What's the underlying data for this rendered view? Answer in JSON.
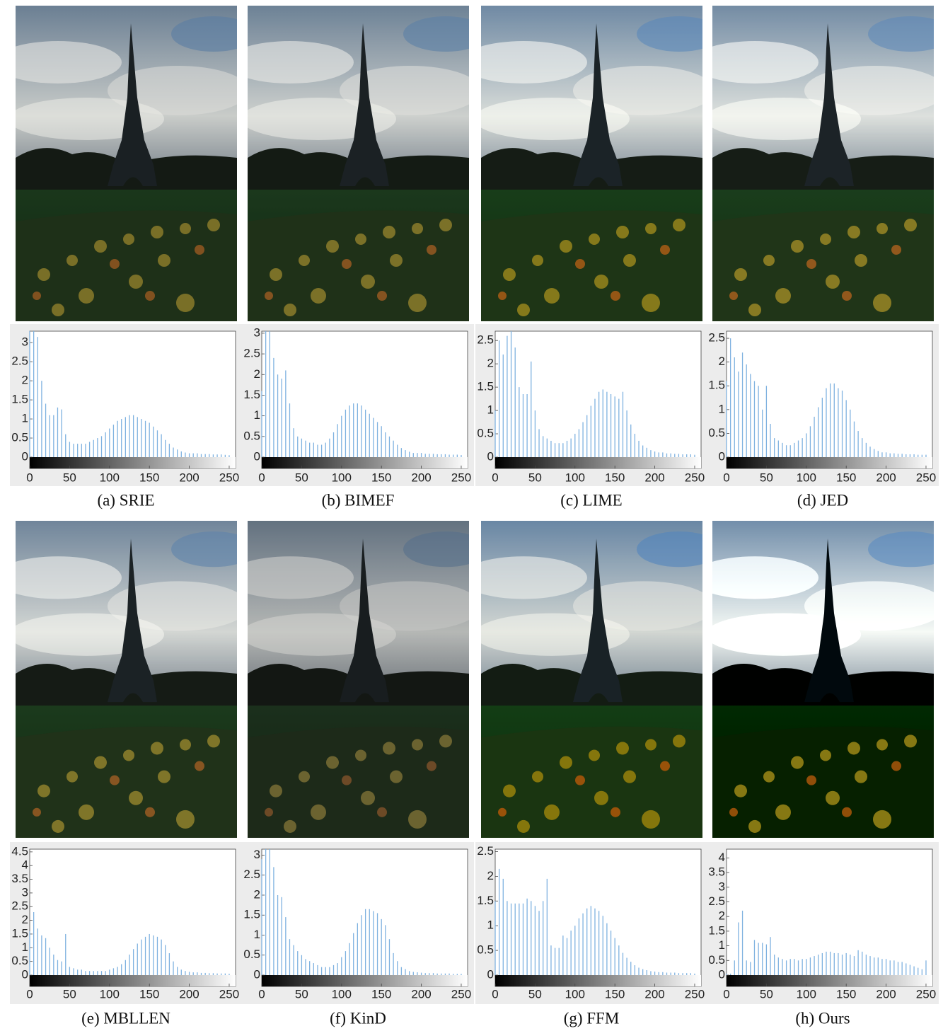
{
  "chart_data": [
    {
      "type": "bar",
      "title": "(a) SRIE",
      "color": "#7fb2e0",
      "x": [
        0,
        5,
        10,
        15,
        20,
        25,
        30,
        35,
        40,
        45,
        50,
        55,
        60,
        65,
        70,
        75,
        80,
        85,
        90,
        95,
        100,
        105,
        110,
        115,
        120,
        125,
        130,
        135,
        140,
        145,
        150,
        155,
        160,
        165,
        170,
        175,
        180,
        185,
        190,
        195,
        200,
        205,
        210,
        215,
        220,
        225,
        230,
        235,
        240,
        245,
        250
      ],
      "values": [
        3.3,
        3.3,
        3.15,
        2.0,
        1.4,
        1.1,
        1.1,
        1.3,
        1.25,
        0.6,
        0.4,
        0.35,
        0.35,
        0.35,
        0.35,
        0.4,
        0.45,
        0.5,
        0.55,
        0.65,
        0.75,
        0.85,
        0.95,
        1.0,
        1.05,
        1.1,
        1.1,
        1.05,
        1.0,
        0.95,
        0.9,
        0.8,
        0.7,
        0.6,
        0.45,
        0.35,
        0.25,
        0.2,
        0.15,
        0.12,
        0.1,
        0.1,
        0.1,
        0.08,
        0.08,
        0.08,
        0.07,
        0.07,
        0.07,
        0.06,
        0.05
      ],
      "xlim": [
        0,
        258
      ],
      "xticks": [
        0,
        50,
        100,
        150,
        200,
        250
      ],
      "ylim": [
        0,
        3.3
      ],
      "yticks": [
        0,
        0.5,
        1,
        1.5,
        2,
        2.5,
        3
      ]
    },
    {
      "type": "bar",
      "title": "(b) BIMEF",
      "color": "#7fb2e0",
      "x": [
        0,
        5,
        10,
        15,
        20,
        25,
        30,
        35,
        40,
        45,
        50,
        55,
        60,
        65,
        70,
        75,
        80,
        85,
        90,
        95,
        100,
        105,
        110,
        115,
        120,
        125,
        130,
        135,
        140,
        145,
        150,
        155,
        160,
        165,
        170,
        175,
        180,
        185,
        190,
        195,
        200,
        205,
        210,
        215,
        220,
        225,
        230,
        235,
        240,
        245,
        250
      ],
      "values": [
        1.6,
        3.05,
        3.05,
        2.4,
        2.0,
        1.9,
        2.1,
        1.3,
        0.7,
        0.5,
        0.45,
        0.4,
        0.35,
        0.35,
        0.3,
        0.3,
        0.35,
        0.45,
        0.6,
        0.8,
        1.0,
        1.15,
        1.25,
        1.3,
        1.3,
        1.25,
        1.15,
        1.05,
        0.95,
        0.85,
        0.75,
        0.6,
        0.5,
        0.4,
        0.3,
        0.22,
        0.17,
        0.13,
        0.1,
        0.1,
        0.1,
        0.08,
        0.08,
        0.08,
        0.07,
        0.07,
        0.07,
        0.06,
        0.06,
        0.06,
        0.05
      ],
      "xlim": [
        0,
        258
      ],
      "xticks": [
        0,
        50,
        100,
        150,
        200,
        250
      ],
      "ylim": [
        0,
        3.05
      ],
      "yticks": [
        0,
        0.5,
        1,
        1.5,
        2,
        2.5,
        3
      ]
    },
    {
      "type": "bar",
      "title": "(c) LIME",
      "color": "#7fb2e0",
      "x": [
        0,
        5,
        10,
        15,
        20,
        25,
        30,
        35,
        40,
        45,
        50,
        55,
        60,
        65,
        70,
        75,
        80,
        85,
        90,
        95,
        100,
        105,
        110,
        115,
        120,
        125,
        130,
        135,
        140,
        145,
        150,
        155,
        160,
        165,
        170,
        175,
        180,
        185,
        190,
        195,
        200,
        205,
        210,
        215,
        220,
        225,
        230,
        235,
        240,
        245,
        250
      ],
      "values": [
        1.0,
        2.5,
        2.2,
        2.6,
        2.7,
        2.35,
        1.5,
        1.35,
        1.35,
        2.05,
        1.0,
        0.6,
        0.45,
        0.4,
        0.35,
        0.3,
        0.3,
        0.3,
        0.35,
        0.4,
        0.5,
        0.6,
        0.75,
        0.9,
        1.1,
        1.25,
        1.4,
        1.45,
        1.4,
        1.35,
        1.3,
        1.25,
        1.4,
        1.0,
        0.7,
        0.5,
        0.35,
        0.25,
        0.2,
        0.15,
        0.12,
        0.1,
        0.1,
        0.08,
        0.08,
        0.07,
        0.07,
        0.06,
        0.06,
        0.06,
        0.05
      ],
      "xlim": [
        0,
        258
      ],
      "xticks": [
        0,
        50,
        100,
        150,
        200,
        250
      ],
      "ylim": [
        0,
        2.7
      ],
      "yticks": [
        0,
        0.5,
        1,
        1.5,
        2,
        2.5
      ]
    },
    {
      "type": "bar",
      "title": "(d) JED",
      "color": "#7fb2e0",
      "x": [
        0,
        5,
        10,
        15,
        20,
        25,
        30,
        35,
        40,
        45,
        50,
        55,
        60,
        65,
        70,
        75,
        80,
        85,
        90,
        95,
        100,
        105,
        110,
        115,
        120,
        125,
        130,
        135,
        140,
        145,
        150,
        155,
        160,
        165,
        170,
        175,
        180,
        185,
        190,
        195,
        200,
        205,
        210,
        215,
        220,
        225,
        230,
        235,
        240,
        245,
        250
      ],
      "values": [
        1.6,
        2.5,
        2.1,
        1.8,
        2.2,
        1.95,
        1.75,
        1.6,
        1.5,
        1.0,
        1.5,
        0.7,
        0.4,
        0.35,
        0.3,
        0.25,
        0.25,
        0.3,
        0.35,
        0.4,
        0.5,
        0.65,
        0.85,
        1.05,
        1.25,
        1.45,
        1.55,
        1.55,
        1.45,
        1.4,
        1.2,
        1.0,
        0.75,
        0.55,
        0.4,
        0.3,
        0.22,
        0.17,
        0.13,
        0.1,
        0.1,
        0.08,
        0.08,
        0.07,
        0.07,
        0.06,
        0.06,
        0.06,
        0.05,
        0.05,
        0.05
      ],
      "xlim": [
        0,
        258
      ],
      "xticks": [
        0,
        50,
        100,
        150,
        200,
        250
      ],
      "ylim": [
        0,
        2.65
      ],
      "yticks": [
        0,
        0.5,
        1,
        1.5,
        2,
        2.5
      ]
    },
    {
      "type": "bar",
      "title": "(e) MBLLEN",
      "color": "#7fb2e0",
      "x": [
        0,
        5,
        10,
        15,
        20,
        25,
        30,
        35,
        40,
        45,
        50,
        55,
        60,
        65,
        70,
        75,
        80,
        85,
        90,
        95,
        100,
        105,
        110,
        115,
        120,
        125,
        130,
        135,
        140,
        145,
        150,
        155,
        160,
        165,
        170,
        175,
        180,
        185,
        190,
        195,
        200,
        205,
        210,
        215,
        220,
        225,
        230,
        235,
        240,
        245,
        250
      ],
      "values": [
        1.6,
        2.3,
        1.7,
        1.45,
        1.35,
        1.0,
        0.75,
        0.55,
        0.5,
        1.5,
        0.3,
        0.25,
        0.2,
        0.2,
        0.15,
        0.15,
        0.15,
        0.15,
        0.15,
        0.15,
        0.2,
        0.25,
        0.3,
        0.4,
        0.55,
        0.75,
        0.95,
        1.15,
        1.3,
        1.4,
        1.5,
        1.45,
        1.4,
        1.3,
        1.1,
        0.8,
        0.5,
        0.3,
        0.2,
        0.15,
        0.12,
        0.1,
        0.1,
        0.08,
        0.08,
        0.07,
        0.07,
        0.06,
        0.06,
        0.06,
        0.05
      ],
      "xlim": [
        0,
        258
      ],
      "xticks": [
        0,
        50,
        100,
        150,
        200,
        250
      ],
      "ylim": [
        0,
        4.6
      ],
      "yticks": [
        0,
        0.5,
        1,
        1.5,
        2,
        2.5,
        3,
        3.5,
        4,
        4.5
      ]
    },
    {
      "type": "bar",
      "title": "(f) KinD",
      "color": "#7fb2e0",
      "x": [
        0,
        5,
        10,
        15,
        20,
        25,
        30,
        35,
        40,
        45,
        50,
        55,
        60,
        65,
        70,
        75,
        80,
        85,
        90,
        95,
        100,
        105,
        110,
        115,
        120,
        125,
        130,
        135,
        140,
        145,
        150,
        155,
        160,
        165,
        170,
        175,
        180,
        185,
        190,
        195,
        200,
        205,
        210,
        215,
        220,
        225,
        230,
        235,
        240,
        245,
        250
      ],
      "values": [
        2.9,
        3.15,
        3.15,
        2.7,
        2.0,
        1.95,
        1.45,
        0.9,
        0.75,
        0.6,
        0.5,
        0.4,
        0.35,
        0.3,
        0.25,
        0.2,
        0.2,
        0.2,
        0.25,
        0.3,
        0.45,
        0.6,
        0.8,
        1.05,
        1.3,
        1.5,
        1.65,
        1.65,
        1.6,
        1.55,
        1.4,
        1.25,
        0.9,
        0.55,
        0.35,
        0.2,
        0.15,
        0.1,
        0.08,
        0.07,
        0.06,
        0.05,
        0.05,
        0.05,
        0.04,
        0.04,
        0.04,
        0.04,
        0.03,
        0.03,
        0.03
      ],
      "xlim": [
        0,
        258
      ],
      "xticks": [
        0,
        50,
        100,
        150,
        200,
        250
      ],
      "ylim": [
        0,
        3.15
      ],
      "yticks": [
        0,
        0.5,
        1,
        1.5,
        2,
        2.5,
        3
      ]
    },
    {
      "type": "bar",
      "title": "(g) FFM",
      "color": "#7fb2e0",
      "x": [
        0,
        5,
        10,
        15,
        20,
        25,
        30,
        35,
        40,
        45,
        50,
        55,
        60,
        65,
        70,
        75,
        80,
        85,
        90,
        95,
        100,
        105,
        110,
        115,
        120,
        125,
        130,
        135,
        140,
        145,
        150,
        155,
        160,
        165,
        170,
        175,
        180,
        185,
        190,
        195,
        200,
        205,
        210,
        215,
        220,
        225,
        230,
        235,
        240,
        245,
        250
      ],
      "values": [
        1.5,
        2.15,
        1.95,
        1.5,
        1.45,
        1.45,
        1.45,
        1.45,
        1.55,
        1.5,
        1.4,
        1.3,
        1.5,
        1.95,
        0.6,
        0.55,
        0.55,
        0.8,
        0.75,
        0.9,
        1.0,
        1.15,
        1.25,
        1.35,
        1.4,
        1.35,
        1.3,
        1.2,
        1.05,
        0.9,
        0.75,
        0.6,
        0.45,
        0.35,
        0.27,
        0.2,
        0.15,
        0.12,
        0.1,
        0.08,
        0.07,
        0.06,
        0.06,
        0.05,
        0.05,
        0.05,
        0.04,
        0.04,
        0.04,
        0.04,
        0.03
      ],
      "xlim": [
        0,
        258
      ],
      "xticks": [
        0,
        50,
        100,
        150,
        200,
        250
      ],
      "ylim": [
        0,
        2.55
      ],
      "yticks": [
        0,
        0.5,
        1,
        1.5,
        2,
        2.5
      ]
    },
    {
      "type": "bar",
      "title": "(h) Ours",
      "color": "#7fb2e0",
      "x": [
        0,
        5,
        10,
        15,
        20,
        25,
        30,
        35,
        40,
        45,
        50,
        55,
        60,
        65,
        70,
        75,
        80,
        85,
        90,
        95,
        100,
        105,
        110,
        115,
        120,
        125,
        130,
        135,
        140,
        145,
        150,
        155,
        160,
        165,
        170,
        175,
        180,
        185,
        190,
        195,
        200,
        205,
        210,
        215,
        220,
        225,
        230,
        235,
        240,
        245,
        250
      ],
      "values": [
        0.05,
        0.05,
        0.5,
        1.8,
        2.2,
        0.5,
        0.45,
        1.2,
        1.1,
        1.1,
        1.05,
        1.3,
        0.7,
        0.6,
        0.55,
        0.5,
        0.55,
        0.55,
        0.5,
        0.55,
        0.55,
        0.6,
        0.65,
        0.7,
        0.75,
        0.8,
        0.8,
        0.75,
        0.75,
        0.7,
        0.75,
        0.7,
        0.65,
        0.85,
        0.8,
        0.7,
        0.65,
        0.6,
        0.6,
        0.55,
        0.55,
        0.5,
        0.5,
        0.45,
        0.45,
        0.4,
        0.35,
        0.3,
        0.25,
        0.2,
        0.5
      ],
      "xlim": [
        0,
        258
      ],
      "xticks": [
        0,
        50,
        100,
        150,
        200,
        250
      ],
      "ylim": [
        0,
        4.3
      ],
      "yticks": [
        0,
        0.5,
        1,
        1.5,
        2,
        2.5,
        3,
        3.5,
        4
      ]
    }
  ]
}
